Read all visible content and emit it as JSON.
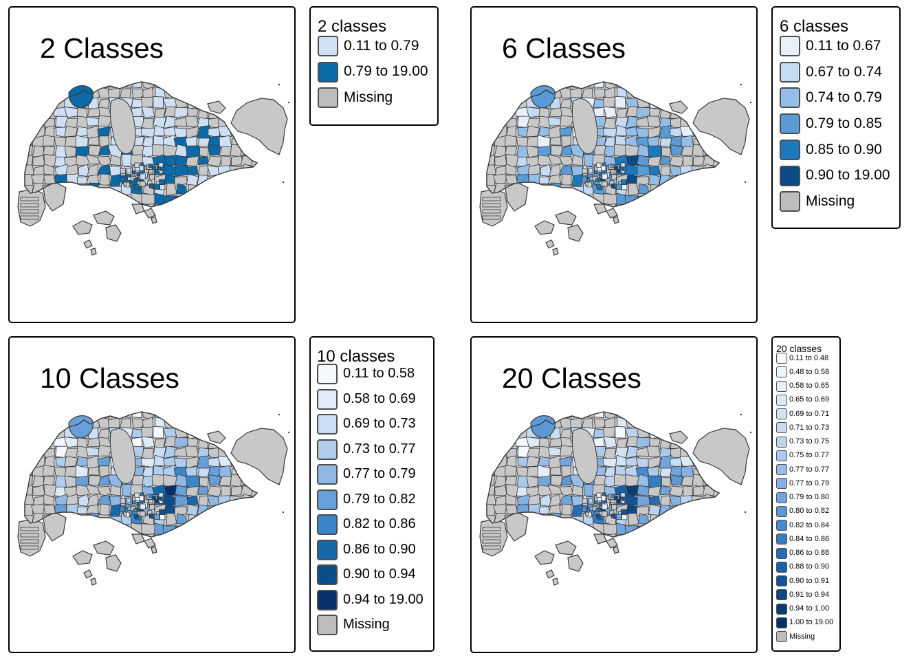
{
  "panels": [
    {
      "title": "2 Classes",
      "legend_title": "2 classes",
      "classes": [
        {
          "label": "0.11 to 0.79",
          "color": "#cfe0f5"
        },
        {
          "label": "0.79 to 19.00",
          "color": "#0a6aa8"
        },
        {
          "label": "Missing",
          "color": "#bdbdbd"
        }
      ]
    },
    {
      "title": "6 Classes",
      "legend_title": "6 classes",
      "classes": [
        {
          "label": "0.11 to 0.67",
          "color": "#e8f1fb"
        },
        {
          "label": "0.67 to 0.74",
          "color": "#c5daf3"
        },
        {
          "label": "0.74 to 0.79",
          "color": "#94bde8"
        },
        {
          "label": "0.79 to 0.85",
          "color": "#5b9bd5"
        },
        {
          "label": "0.85 to 0.90",
          "color": "#1a78bd"
        },
        {
          "label": "0.90 to 19.00",
          "color": "#084b86"
        },
        {
          "label": "Missing",
          "color": "#bdbdbd"
        }
      ]
    },
    {
      "title": "10 Classes",
      "legend_title": "10 classes",
      "classes": [
        {
          "label": "0.11 to 0.58",
          "color": "#f5f8fc"
        },
        {
          "label": "0.58 to 0.69",
          "color": "#e0ebf8"
        },
        {
          "label": "0.69 to 0.73",
          "color": "#cbdef4"
        },
        {
          "label": "0.73 to 0.77",
          "color": "#b0cdee"
        },
        {
          "label": "0.77 to 0.79",
          "color": "#8fb8e5"
        },
        {
          "label": "0.79 to 0.82",
          "color": "#679fd8"
        },
        {
          "label": "0.82 to 0.86",
          "color": "#3a86c8"
        },
        {
          "label": "0.86 to 0.90",
          "color": "#1569aa"
        },
        {
          "label": "0.90 to 0.94",
          "color": "#0b4f8a"
        },
        {
          "label": "0.94 to 19.00",
          "color": "#06306a"
        },
        {
          "label": "Missing",
          "color": "#bdbdbd"
        }
      ]
    },
    {
      "title": "20 Classes",
      "legend_title": "20 classes",
      "classes": [
        {
          "label": "0.11 to 0.48",
          "color": "#f7fafd"
        },
        {
          "label": "0.48 to 0.58",
          "color": "#eef4fb"
        },
        {
          "label": "0.58 to 0.65",
          "color": "#e6eff9"
        },
        {
          "label": "0.65 to 0.69",
          "color": "#dde9f7"
        },
        {
          "label": "0.69 to 0.71",
          "color": "#d3e3f5"
        },
        {
          "label": "0.71 to 0.73",
          "color": "#c8dcf3"
        },
        {
          "label": "0.73 to 0.75",
          "color": "#bad3ef"
        },
        {
          "label": "0.75 to 0.77",
          "color": "#aac9eb"
        },
        {
          "label": "0.77 to 0.77",
          "color": "#98bee7"
        },
        {
          "label": "0.77 to 0.79",
          "color": "#85b2e2"
        },
        {
          "label": "0.79 to 0.80",
          "color": "#71a5dc"
        },
        {
          "label": "0.80 to 0.82",
          "color": "#5d97d4"
        },
        {
          "label": "0.82 to 0.84",
          "color": "#4a8acc"
        },
        {
          "label": "0.84 to 0.86",
          "color": "#367cc2"
        },
        {
          "label": "0.86 to 0.88",
          "color": "#246db5"
        },
        {
          "label": "0.88 to 0.90",
          "color": "#1a60a4"
        },
        {
          "label": "0.90 to 0.91",
          "color": "#145494"
        },
        {
          "label": "0.91 to 0.94",
          "color": "#0f4884"
        },
        {
          "label": "0.94 to 1.00",
          "color": "#0b3d75"
        },
        {
          "label": "1.00 to 19.00",
          "color": "#083266"
        },
        {
          "label": "Missing",
          "color": "#bdbdbd"
        }
      ]
    }
  ]
}
